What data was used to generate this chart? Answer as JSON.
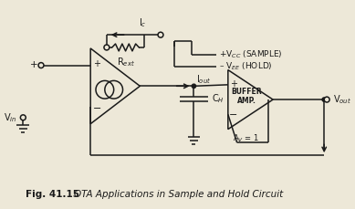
{
  "bg_color": "#ede8d8",
  "line_color": "#1a1a1a",
  "figsize": [
    3.89,
    2.29
  ],
  "dpi": 100,
  "labels": {
    "Ic": "I$_c$",
    "Rext": "R$_{ext}$",
    "Iout": "I$_{out}$",
    "CH": "C$_H$",
    "Vin": "V$_{in}$",
    "Vout": "V$_{out}$",
    "Vcc": "+V$_{CC}$ (SAMPLE)",
    "Vee": "– V$_{EE}$ (HOLD)",
    "buffer_line1": "BUFFER",
    "buffer_line2": "AMP.",
    "Av": "A$_V$ = 1",
    "plus": "+",
    "minus": "−",
    "fig_num": "Fig. 41.15",
    "fig_title": "OTA Applications in Sample and Hold Circuit"
  }
}
